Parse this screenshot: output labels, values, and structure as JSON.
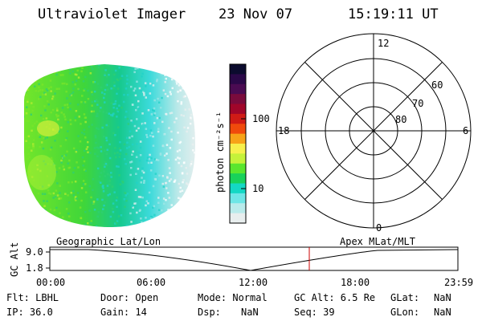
{
  "header": {
    "title": "Ultraviolet Imager",
    "date": "23 Nov 07",
    "time": "15:19:11 UT"
  },
  "colorbar": {
    "unit_label": "photon cm⁻²s⁻¹",
    "ticks": [
      "100",
      "10"
    ],
    "colors": [
      "#0b0b2e",
      "#2a0848",
      "#4a0b52",
      "#7a0b3c",
      "#a0062a",
      "#cf1b16",
      "#f04a0c",
      "#f7a318",
      "#f7f04c",
      "#c5f23a",
      "#5ae62e",
      "#18d25a",
      "#14d8c4",
      "#6ee6e6",
      "#b9ebeb",
      "#e8eeee"
    ]
  },
  "polar": {
    "mlt_labels": {
      "top": "12",
      "left": "18",
      "right": "6",
      "bottom": "0"
    },
    "lat_labels": [
      "60",
      "70",
      "80"
    ]
  },
  "orbit": {
    "left_title": "Geographic Lat/Lon",
    "right_title": "Apex MLat/MLT",
    "axis_label": "GC Alt",
    "y_ticks": [
      "9.0",
      "1.8"
    ],
    "x_ticks": [
      "00:00",
      "06:00",
      "12:00",
      "18:00",
      "23:59"
    ],
    "marker_color": "#cc0000"
  },
  "status": {
    "row1": [
      {
        "key": "flt",
        "text": "Flt: LBHL"
      },
      {
        "key": "door",
        "text": "Door: Open"
      },
      {
        "key": "mode",
        "text": "Mode: Normal"
      },
      {
        "key": "gcalt",
        "text": "GC Alt: 6.5 Re"
      },
      {
        "key": "glat_label",
        "text": "GLat:"
      },
      {
        "key": "glat_val",
        "text": "NaN"
      }
    ],
    "row2": [
      {
        "key": "ip",
        "text": "IP: 36.0"
      },
      {
        "key": "gain",
        "text": "Gain: 14"
      },
      {
        "key": "dsp_label",
        "text": "Dsp:"
      },
      {
        "key": "dsp_val",
        "text": "NaN"
      },
      {
        "key": "seq",
        "text": "Seq: 39"
      },
      {
        "key": "glon_label",
        "text": "GLon:"
      },
      {
        "key": "glon_val",
        "text": "NaN"
      }
    ]
  }
}
